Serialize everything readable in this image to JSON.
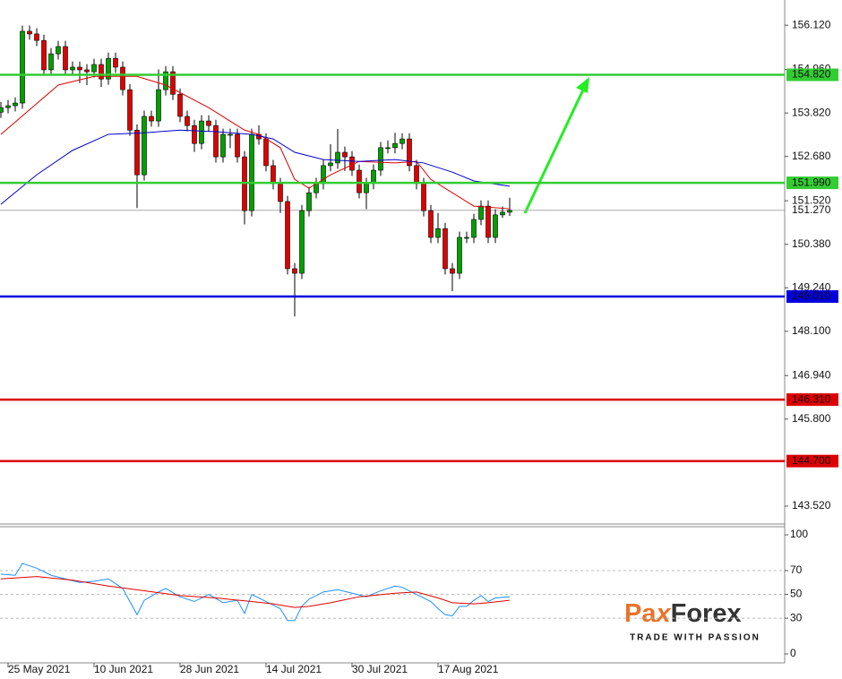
{
  "chart_data": [
    {
      "type": "candlestick",
      "categories": [
        null,
        "25 May 2021",
        null,
        null,
        null,
        null,
        null,
        null,
        null,
        null,
        null,
        null,
        null,
        "10 Jun 2021",
        null,
        null,
        null,
        null,
        null,
        null,
        null,
        null,
        null,
        null,
        null,
        "28 Jun 2021",
        null,
        null,
        null,
        null,
        null,
        null,
        null,
        null,
        null,
        null,
        null,
        "14 Jul 2021",
        null,
        null,
        null,
        null,
        null,
        null,
        null,
        null,
        null,
        null,
        null,
        "30 Jul 2021",
        null,
        null,
        null,
        null,
        null,
        null,
        null,
        null,
        null,
        null,
        null,
        "17 Aug 2021",
        null,
        null,
        null,
        null,
        null,
        null,
        null,
        null,
        null,
        null
      ],
      "open": [
        153.84,
        153.96,
        154.01,
        154.08,
        155.96,
        155.89,
        155.72,
        154.95,
        155.37,
        155.56,
        154.95,
        155.02,
        154.95,
        154.9,
        155.09,
        154.71,
        155.25,
        155.02,
        154.43,
        153.37,
        152.2,
        153.73,
        153.61,
        154.43,
        154.9,
        154.31,
        153.73,
        153.49,
        153.02,
        153.61,
        153.49,
        152.67,
        153.26,
        153.26,
        152.67,
        151.26,
        153.26,
        153.14,
        152.44,
        151.97,
        151.5,
        149.74,
        149.62,
        151.26,
        151.73,
        151.97,
        152.44,
        152.51,
        152.79,
        152.67,
        152.32,
        151.73,
        151.97,
        152.32,
        152.91,
        152.91,
        153.02,
        153.14,
        152.44,
        151.97,
        151.26,
        150.56,
        150.79,
        149.74,
        149.62,
        150.56,
        150.56,
        151.03,
        151.38,
        150.56,
        151.15,
        151.22
      ],
      "high": [
        154.11,
        154.16,
        154.23,
        156.11,
        156.11,
        156.04,
        155.87,
        155.52,
        155.71,
        155.71,
        155.17,
        155.17,
        155.1,
        155.24,
        155.24,
        155.4,
        155.4,
        155.17,
        154.58,
        153.52,
        153.88,
        153.88,
        154.96,
        155.05,
        155.05,
        154.46,
        153.88,
        153.64,
        153.76,
        153.76,
        153.64,
        153.41,
        153.41,
        153.41,
        152.82,
        153.41,
        153.5,
        153.29,
        152.59,
        152.12,
        151.65,
        149.89,
        151.41,
        151.88,
        152.12,
        152.59,
        153.0,
        153.4,
        152.94,
        152.82,
        152.47,
        152.12,
        152.47,
        153.06,
        153.1,
        153.3,
        153.29,
        153.29,
        152.59,
        152.12,
        151.41,
        151.2,
        150.94,
        149.89,
        150.71,
        150.71,
        151.18,
        151.53,
        151.53,
        151.3,
        151.37,
        151.6
      ],
      "low": [
        153.69,
        153.81,
        153.86,
        153.93,
        155.74,
        155.57,
        154.8,
        154.8,
        155.22,
        154.8,
        154.8,
        154.6,
        154.55,
        154.75,
        154.5,
        154.56,
        154.87,
        154.28,
        153.22,
        151.33,
        152.05,
        153.46,
        153.46,
        154.28,
        154.16,
        153.58,
        153.34,
        152.8,
        152.87,
        153.34,
        152.52,
        152.52,
        152.9,
        152.52,
        150.9,
        151.11,
        152.99,
        152.29,
        151.82,
        151.2,
        149.59,
        148.49,
        149.47,
        151.11,
        151.58,
        151.82,
        152.29,
        152.36,
        152.3,
        152.17,
        151.58,
        151.3,
        151.82,
        152.17,
        152.76,
        152.76,
        152.87,
        152.29,
        151.82,
        151.11,
        150.41,
        150.41,
        149.59,
        149.15,
        149.47,
        150.41,
        150.41,
        150.88,
        150.41,
        150.41,
        151.07,
        151.12
      ],
      "close": [
        153.96,
        154.01,
        154.08,
        155.96,
        155.89,
        155.72,
        154.95,
        155.37,
        155.56,
        154.95,
        155.02,
        154.95,
        154.9,
        155.09,
        154.71,
        155.25,
        155.02,
        154.43,
        153.37,
        152.2,
        153.73,
        153.61,
        154.43,
        154.9,
        154.31,
        153.73,
        153.49,
        153.02,
        153.61,
        153.49,
        152.67,
        153.26,
        153.26,
        152.67,
        151.26,
        153.26,
        153.14,
        152.44,
        151.97,
        151.5,
        149.74,
        149.62,
        151.26,
        151.73,
        151.97,
        152.44,
        152.51,
        152.79,
        152.67,
        152.32,
        151.73,
        151.97,
        152.32,
        152.91,
        152.91,
        153.02,
        153.14,
        152.44,
        151.97,
        151.26,
        150.56,
        150.79,
        149.74,
        149.62,
        150.56,
        150.56,
        151.03,
        151.38,
        150.56,
        151.15,
        151.22,
        151.27
      ],
      "up_color": "#00a000",
      "down_color": "#e00000",
      "lines": [
        {
          "color": "#e00000",
          "x": [
            0,
            8,
            13,
            19,
            23,
            29,
            34,
            36,
            39,
            41,
            43,
            46,
            50,
            55,
            58,
            60,
            63,
            66,
            71
          ],
          "values": [
            153.26,
            154.55,
            154.78,
            154.78,
            154.55,
            153.96,
            153.37,
            153.26,
            152.91,
            152.08,
            151.85,
            152.2,
            152.55,
            152.51,
            152.55,
            152.08,
            151.73,
            151.38,
            151.31
          ]
        },
        {
          "color": "#0000cc",
          "x": [
            0,
            5,
            10,
            15,
            20,
            25,
            30,
            35,
            38,
            41,
            45,
            50,
            55,
            59,
            63,
            66,
            71
          ],
          "values": [
            151.43,
            152.2,
            152.84,
            153.26,
            153.3,
            153.37,
            153.33,
            153.26,
            153.14,
            152.79,
            152.6,
            152.55,
            152.6,
            152.51,
            152.27,
            152.04,
            151.9
          ]
        }
      ],
      "levels": [
        {
          "value": 154.82,
          "label": "154.820",
          "color": "#33cc33"
        },
        {
          "value": 151.99,
          "label": "151.990",
          "color": "#33cc33"
        },
        {
          "value": 149.01,
          "label": "149.010",
          "color": "#0000dd"
        },
        {
          "value": 146.31,
          "label": "146.310",
          "color": "#dd0000"
        },
        {
          "value": 144.7,
          "label": "144.700",
          "color": "#dd0000"
        }
      ],
      "current": {
        "value": 151.27,
        "label": "151.270",
        "color": "#aaaaaa"
      },
      "ylim": [
        143.05,
        156.78
      ],
      "yticks": [
        {
          "value": 156.12,
          "label": "156.120"
        },
        {
          "value": 154.96,
          "label": "154.960"
        },
        {
          "value": 153.82,
          "label": "153.820"
        },
        {
          "value": 152.68,
          "label": "152.680"
        },
        {
          "value": 151.52,
          "label": "151.520"
        },
        {
          "value": 150.38,
          "label": "150.380"
        },
        {
          "value": 149.24,
          "label": "149.240"
        },
        {
          "value": 148.1,
          "label": "148.100"
        },
        {
          "value": 146.94,
          "label": "146.940"
        },
        {
          "value": 145.8,
          "label": "145.800"
        },
        {
          "value": 143.52,
          "label": "143.520"
        }
      ]
    },
    {
      "type": "line",
      "lines": [
        {
          "color": "#1e90ff",
          "x": [
            0,
            2,
            3,
            5,
            7,
            9,
            11,
            13,
            15,
            17,
            19,
            20,
            22,
            23,
            25,
            27,
            29,
            31,
            33,
            34,
            35,
            37,
            39,
            40,
            41,
            42,
            43,
            45,
            47,
            49,
            51,
            53,
            55,
            56,
            58,
            60,
            61,
            62,
            63,
            64,
            65,
            66,
            67,
            68,
            69,
            71
          ],
          "values": [
            67,
            66,
            76,
            72,
            66,
            63,
            60,
            61,
            63,
            55,
            33,
            45,
            52,
            55,
            48,
            44,
            50,
            43,
            45,
            34,
            50,
            44,
            38,
            28,
            28,
            40,
            46,
            52,
            54,
            51,
            48,
            53,
            57,
            56,
            50,
            44,
            38,
            33,
            32,
            40,
            40,
            45,
            49,
            44,
            47,
            48
          ]
        },
        {
          "color": "#e00000",
          "x": [
            0,
            5,
            10,
            15,
            20,
            25,
            30,
            35,
            38,
            41,
            43,
            46,
            50,
            55,
            58,
            61,
            63,
            66,
            68,
            71
          ],
          "values": [
            63,
            65,
            62,
            57,
            53,
            49,
            47,
            44,
            42,
            39,
            40,
            43,
            48,
            51,
            52,
            47,
            43,
            42,
            43,
            45
          ]
        }
      ],
      "ylim": [
        -7.5,
        106.8
      ],
      "yticks": [
        100,
        70,
        50,
        30,
        0
      ],
      "grid": [
        70,
        50,
        30
      ]
    }
  ],
  "logo": {
    "parts": [
      "Pa",
      "x",
      "Forex"
    ],
    "tagline": "TRADE WITH PASSION"
  }
}
